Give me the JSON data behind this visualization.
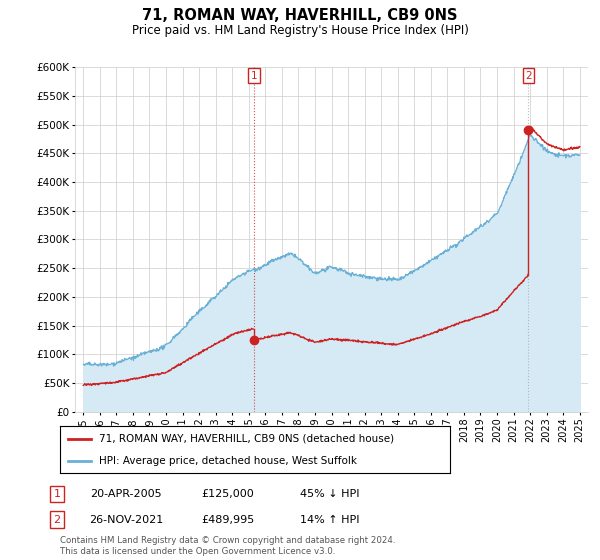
{
  "title": "71, ROMAN WAY, HAVERHILL, CB9 0NS",
  "subtitle": "Price paid vs. HM Land Registry's House Price Index (HPI)",
  "ylabel_ticks": [
    "£0",
    "£50K",
    "£100K",
    "£150K",
    "£200K",
    "£250K",
    "£300K",
    "£350K",
    "£400K",
    "£450K",
    "£500K",
    "£550K",
    "£600K"
  ],
  "ytick_values": [
    0,
    50000,
    100000,
    150000,
    200000,
    250000,
    300000,
    350000,
    400000,
    450000,
    500000,
    550000,
    600000
  ],
  "ylim": [
    0,
    600000
  ],
  "xlim_start": 1994.5,
  "xlim_end": 2025.5,
  "hpi_color": "#6ab0d4",
  "hpi_fill_color": "#d6eaf5",
  "price_color": "#cc2222",
  "marker1_date": 2005.3,
  "marker1_price": 125000,
  "marker2_date": 2021.9,
  "marker2_price": 489995,
  "marker1_prev_price": 47000,
  "marker2_prev_price": 222000,
  "legend_line1": "71, ROMAN WAY, HAVERHILL, CB9 0NS (detached house)",
  "legend_line2": "HPI: Average price, detached house, West Suffolk",
  "annotation1_date": "20-APR-2005",
  "annotation1_price": "£125,000",
  "annotation1_hpi": "45% ↓ HPI",
  "annotation2_date": "26-NOV-2021",
  "annotation2_price": "£489,995",
  "annotation2_hpi": "14% ↑ HPI",
  "footer": "Contains HM Land Registry data © Crown copyright and database right 2024.\nThis data is licensed under the Open Government Licence v3.0.",
  "background_color": "#ffffff",
  "grid_color": "#cccccc"
}
